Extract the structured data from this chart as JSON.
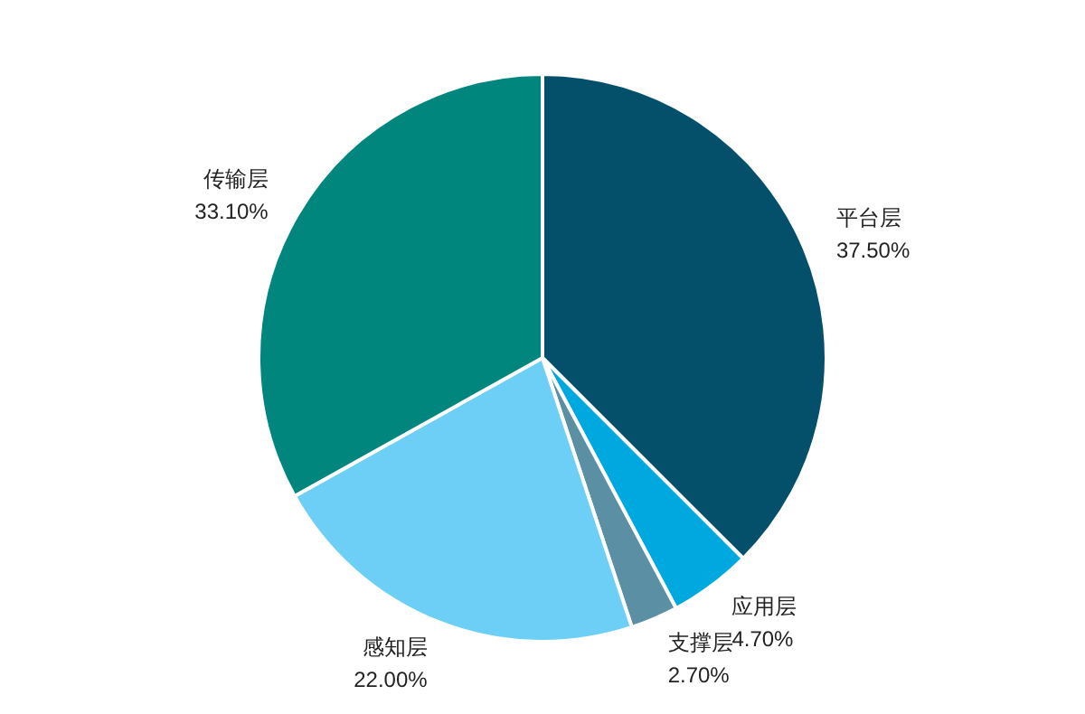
{
  "chart_data": {
    "type": "pie",
    "categories": [
      "平台层",
      "应用层",
      "支撑层",
      "感知层",
      "传输层"
    ],
    "values": [
      37.5,
      4.7,
      2.7,
      22.0,
      33.1
    ],
    "value_labels": [
      "37.50%",
      "4.70%",
      "2.70%",
      "22.00%",
      "33.10%"
    ],
    "colors": [
      "#04506a",
      "#00a8e0",
      "#5b8fa3",
      "#6dcff6",
      "#00867c"
    ],
    "legend": false
  }
}
